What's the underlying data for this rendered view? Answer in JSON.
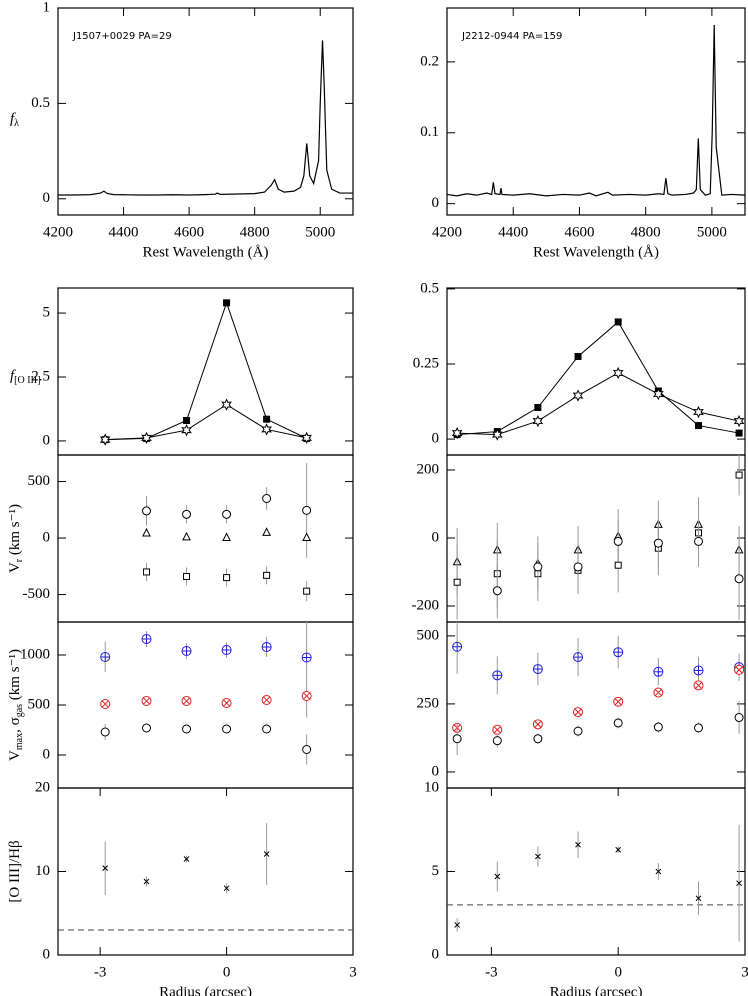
{
  "chart_data": [
    {
      "type": "line",
      "annotation": "J1507+0029 PA=29",
      "ylabel": [
        {
          "text": "f"
        },
        {
          "sub": "λ"
        }
      ],
      "xlabel": "Rest Wavelength (Å)",
      "xlim": [
        4200,
        5100
      ],
      "xticks": [
        4200,
        4400,
        4600,
        4800,
        5000
      ],
      "ylim": [
        -0.085,
        1
      ],
      "yticks": [
        0,
        0.5,
        1
      ],
      "x": [
        4200,
        4250,
        4300,
        4330,
        4340,
        4350,
        4370,
        4400,
        4450,
        4500,
        4550,
        4600,
        4650,
        4680,
        4686,
        4695,
        4750,
        4800,
        4830,
        4850,
        4861,
        4872,
        4890,
        4920,
        4940,
        4950,
        4959,
        4968,
        4980,
        4995,
        5000,
        5007,
        5012,
        5020,
        5035,
        5060,
        5100
      ],
      "series": [
        {
          "color": "#000000",
          "values": [
            0.02,
            0.02,
            0.022,
            0.03,
            0.04,
            0.028,
            0.022,
            0.021,
            0.02,
            0.02,
            0.021,
            0.02,
            0.022,
            0.024,
            0.03,
            0.023,
            0.025,
            0.027,
            0.035,
            0.07,
            0.1,
            0.05,
            0.035,
            0.04,
            0.06,
            0.12,
            0.29,
            0.12,
            0.08,
            0.2,
            0.5,
            0.83,
            0.6,
            0.15,
            0.05,
            0.03,
            0.03
          ]
        }
      ]
    },
    {
      "type": "line",
      "annotation": "J2212-0944 PA=159",
      "xlabel": "Rest Wavelength (Å)",
      "xlim": [
        4200,
        5100
      ],
      "xticks": [
        4200,
        4400,
        4600,
        4800,
        5000
      ],
      "ylim": [
        -0.016,
        0.276
      ],
      "yticks": [
        0,
        0.1,
        0.2
      ],
      "x": [
        4200,
        4230,
        4260,
        4290,
        4320,
        4335,
        4340,
        4345,
        4360,
        4363,
        4366,
        4400,
        4450,
        4500,
        4550,
        4600,
        4630,
        4650,
        4686,
        4700,
        4750,
        4800,
        4840,
        4855,
        4861,
        4867,
        4880,
        4920,
        4945,
        4953,
        4959,
        4965,
        4980,
        4995,
        5001,
        5007,
        5013,
        5030,
        5060,
        5100
      ],
      "series": [
        {
          "color": "#000000",
          "values": [
            0.013,
            0.011,
            0.014,
            0.012,
            0.015,
            0.013,
            0.03,
            0.014,
            0.013,
            0.022,
            0.013,
            0.012,
            0.014,
            0.011,
            0.013,
            0.012,
            0.015,
            0.011,
            0.016,
            0.012,
            0.013,
            0.012,
            0.014,
            0.013,
            0.036,
            0.014,
            0.012,
            0.013,
            0.015,
            0.02,
            0.092,
            0.02,
            0.012,
            0.014,
            0.1,
            0.252,
            0.08,
            0.012,
            0.013,
            0.012
          ]
        }
      ]
    },
    {
      "type": "scatter",
      "connect": true,
      "ylabel": [
        {
          "text": "f"
        },
        {
          "sub": "[O III]"
        }
      ],
      "xlim": [
        -4,
        3
      ],
      "ylim": [
        -0.55,
        5.98
      ],
      "yticks": [
        0,
        2.5,
        5
      ],
      "x": [
        -2.88,
        -1.9,
        -0.95,
        0,
        0.95,
        1.9
      ],
      "series": [
        {
          "marker": "filled-square",
          "color": "#000000",
          "values": [
            0.05,
            0.1,
            0.8,
            5.4,
            0.85,
            0.1
          ]
        },
        {
          "marker": "star",
          "color": "#000000",
          "values": [
            0.05,
            0.12,
            0.42,
            1.42,
            0.45,
            0.12
          ]
        }
      ]
    },
    {
      "type": "scatter",
      "connect": true,
      "xlim": [
        -4.05,
        3
      ],
      "ylim": [
        -0.053,
        0.503
      ],
      "yticks": [
        0,
        0.25,
        0.5
      ],
      "x": [
        -3.81,
        -2.86,
        -1.9,
        -0.95,
        0,
        0.95,
        1.9,
        2.86
      ],
      "series": [
        {
          "marker": "filled-square",
          "color": "#000000",
          "values": [
            0.015,
            0.025,
            0.105,
            0.275,
            0.39,
            0.16,
            0.045,
            0.02
          ]
        },
        {
          "marker": "star",
          "color": "#000000",
          "values": [
            0.02,
            0.015,
            0.06,
            0.145,
            0.22,
            0.15,
            0.09,
            0.06
          ]
        }
      ]
    },
    {
      "type": "scatter",
      "ylabel": [
        {
          "text": "V"
        },
        {
          "sub": "r"
        },
        {
          "text": " (km s⁻¹)"
        }
      ],
      "xlim": [
        -4,
        3
      ],
      "ylim": [
        -743,
        735
      ],
      "yticks": [
        -500,
        0,
        500
      ],
      "x": [
        -2.88,
        -1.9,
        -0.95,
        0,
        0.95,
        1.9
      ],
      "series": [
        {
          "marker": "circle",
          "color": "#000000",
          "values": [
            null,
            240,
            210,
            210,
            350,
            245
          ],
          "errors": [
            null,
            130,
            80,
            80,
            100,
            420
          ]
        },
        {
          "marker": "triangle",
          "color": "#000000",
          "values": [
            null,
            45,
            10,
            5,
            50,
            5
          ]
        },
        {
          "marker": "square",
          "color": "#000000",
          "values": [
            null,
            -300,
            -340,
            -350,
            -330,
            -470
          ],
          "errors": [
            null,
            80,
            80,
            80,
            80,
            90
          ]
        }
      ]
    },
    {
      "type": "scatter",
      "xlim": [
        -4.05,
        3
      ],
      "ylim": [
        -247,
        244
      ],
      "yticks": [
        -200,
        0,
        200
      ],
      "x": [
        -3.81,
        -2.86,
        -1.9,
        -0.95,
        0,
        0.95,
        1.9,
        2.86
      ],
      "series": [
        {
          "marker": "triangle",
          "color": "#000000",
          "values": [
            -70,
            -35,
            -75,
            -35,
            5,
            40,
            40,
            -35
          ],
          "errors": [
            100,
            80,
            80,
            70,
            80,
            70,
            80,
            70
          ]
        },
        {
          "marker": "square",
          "color": "#000000",
          "values": [
            -130,
            -105,
            -105,
            -95,
            -80,
            -30,
            15,
            185
          ],
          "errors": [
            110,
            100,
            80,
            70,
            80,
            80,
            100,
            60
          ]
        },
        {
          "marker": "circle",
          "color": "#000000",
          "values": [
            null,
            -155,
            -85,
            -85,
            -10,
            -15,
            -10,
            -120
          ],
          "errors": [
            null,
            80,
            70,
            70,
            60,
            70,
            70,
            120
          ]
        }
      ]
    },
    {
      "type": "scatter",
      "ylabel": [
        {
          "text": "V"
        },
        {
          "sub": "max"
        },
        {
          "text": ", σ"
        },
        {
          "sub": "gas"
        },
        {
          "text": " (km s⁻¹)"
        }
      ],
      "xlim": [
        -4,
        3
      ],
      "ylim": [
        -330,
        1330
      ],
      "yticks": [
        0,
        500,
        1000
      ],
      "x": [
        -2.88,
        -1.9,
        -0.95,
        0,
        0.95,
        1.9
      ],
      "series": [
        {
          "marker": "circle-plus",
          "color": "#1f1fd6",
          "values": [
            980,
            1160,
            1040,
            1050,
            1080,
            975
          ],
          "errors": [
            150,
            80,
            80,
            80,
            100,
            600
          ]
        },
        {
          "marker": "circle-x",
          "color": "#e02020",
          "values": [
            510,
            540,
            540,
            520,
            550,
            590
          ]
        },
        {
          "marker": "circle",
          "color": "#000000",
          "values": [
            230,
            270,
            260,
            260,
            260,
            55
          ],
          "errors": [
            80,
            30,
            30,
            30,
            30,
            150
          ]
        }
      ]
    },
    {
      "type": "scatter",
      "xlim": [
        -4.05,
        3
      ],
      "ylim": [
        -59,
        551
      ],
      "yticks": [
        0,
        250,
        500
      ],
      "x": [
        -3.81,
        -2.86,
        -1.9,
        -0.95,
        0,
        0.95,
        1.9,
        2.86
      ],
      "series": [
        {
          "marker": "circle-plus",
          "color": "#1f1fd6",
          "values": [
            460,
            355,
            378,
            422,
            440,
            368,
            373,
            385
          ],
          "errors": [
            100,
            70,
            60,
            70,
            60,
            50,
            50,
            50
          ]
        },
        {
          "marker": "circle-x",
          "color": "#e02020",
          "values": [
            162,
            155,
            175,
            220,
            258,
            292,
            318,
            375
          ]
        },
        {
          "marker": "circle",
          "color": "#000000",
          "values": [
            122,
            115,
            122,
            150,
            180,
            165,
            162,
            200
          ],
          "errors": [
            60,
            25,
            20,
            20,
            20,
            20,
            20,
            60
          ]
        }
      ]
    },
    {
      "type": "scatter",
      "ylabel": [
        {
          "text": "[O III]/Hβ"
        }
      ],
      "xlabel": "Radius (arcsec)",
      "hline": 3,
      "xlim": [
        -4,
        3
      ],
      "xticks": [
        -3,
        0,
        3
      ],
      "ylim": [
        0,
        20
      ],
      "yticks": [
        0,
        10,
        20
      ],
      "x": [
        -2.88,
        -1.9,
        -0.95,
        0,
        0.95,
        1.9
      ],
      "series": [
        {
          "marker": "cross",
          "color": "#000000",
          "values": [
            10.4,
            8.8,
            11.5,
            8.0,
            12.1,
            null
          ],
          "errors": [
            3.2,
            0.6,
            0.4,
            0.6,
            3.7,
            null
          ]
        }
      ]
    },
    {
      "type": "scatter",
      "xlabel": "Radius (arcsec)",
      "hline": 3,
      "xlim": [
        -4.05,
        3
      ],
      "xticks": [
        -3,
        0,
        3
      ],
      "ylim": [
        0,
        10
      ],
      "yticks": [
        0,
        5,
        10
      ],
      "x": [
        -3.81,
        -2.86,
        -1.9,
        -0.95,
        0,
        0.95,
        1.9,
        2.86
      ],
      "series": [
        {
          "marker": "cross",
          "color": "#000000",
          "values": [
            1.8,
            4.7,
            5.9,
            6.6,
            6.3,
            5.0,
            3.4,
            4.3
          ],
          "errors": [
            0.4,
            0.9,
            0.6,
            0.8,
            0.2,
            0.5,
            1.0,
            3.5
          ]
        }
      ]
    }
  ]
}
